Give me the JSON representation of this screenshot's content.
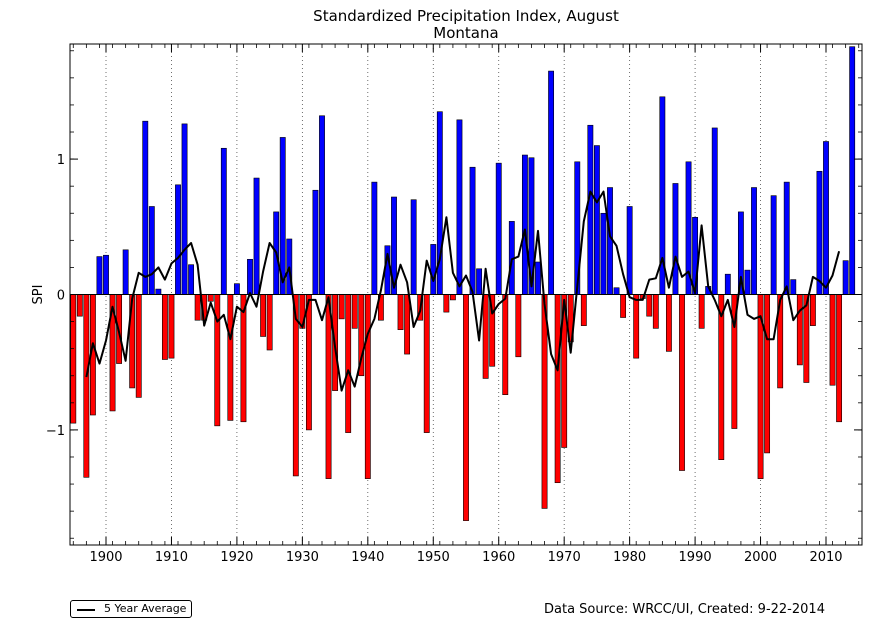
{
  "chart_data": {
    "type": "bar",
    "title": "Standardized Precipitation Index, August",
    "subtitle": "Montana",
    "ylabel": "SPI",
    "xlabel": "",
    "xlim": [
      1894.5,
      2015.5
    ],
    "ylim": [
      -1.85,
      1.85
    ],
    "x_ticks": [
      1900,
      1910,
      1920,
      1930,
      1940,
      1950,
      1960,
      1970,
      1980,
      1990,
      2000,
      2010
    ],
    "y_ticks": [
      -1,
      0,
      1
    ],
    "y_tick_labels": [
      "−1",
      "0",
      "1"
    ],
    "grid": "vertical dotted lines at x ticks",
    "positive_color": "#0000ff",
    "negative_color": "#ff0000",
    "line_color": "#000000",
    "start_year": 1895,
    "values": [
      -0.95,
      -0.16,
      -1.35,
      -0.89,
      0.28,
      0.29,
      -0.86,
      -0.51,
      0.33,
      -0.69,
      -0.76,
      1.28,
      0.65,
      0.04,
      -0.48,
      -0.47,
      0.81,
      1.26,
      0.22,
      -0.19,
      -0.19,
      -0.05,
      -0.97,
      1.08,
      -0.93,
      0.08,
      -0.94,
      0.26,
      0.86,
      -0.31,
      -0.41,
      0.61,
      1.16,
      0.41,
      -1.34,
      -0.25,
      -1.0,
      0.77,
      1.32,
      -1.36,
      -0.71,
      -0.18,
      -1.02,
      -0.25,
      -0.6,
      -1.36,
      0.83,
      -0.19,
      0.36,
      0.72,
      -0.26,
      -0.44,
      0.7,
      -0.19,
      -1.02,
      0.37,
      1.35,
      -0.13,
      -0.04,
      1.29,
      -1.67,
      0.94,
      0.19,
      -0.62,
      -0.53,
      0.97,
      -0.74,
      0.54,
      -0.46,
      1.03,
      1.01,
      0.24,
      -1.58,
      1.65,
      -1.39,
      -1.13,
      -0.35,
      0.98,
      -0.23,
      1.25,
      1.1,
      0.6,
      0.79,
      0.05,
      -0.17,
      0.65,
      -0.47,
      -0.03,
      -0.16,
      -0.25,
      1.46,
      -0.42,
      0.82,
      -1.3,
      0.98,
      0.57,
      -0.25,
      0.06,
      1.23,
      -1.22,
      0.15,
      -0.99,
      0.61,
      0.18,
      0.79,
      -1.36,
      -1.17,
      0.73,
      -0.69,
      0.83,
      0.11,
      -0.52,
      -0.65,
      -0.23,
      0.91,
      1.13,
      -0.67,
      -0.94,
      0.25,
      1.83
    ],
    "series": [
      {
        "name": "5 Year Average",
        "start_year": 1897,
        "values": [
          -0.61,
          -0.36,
          -0.51,
          -0.34,
          -0.09,
          -0.28,
          -0.49,
          -0.03,
          0.16,
          0.13,
          0.15,
          0.2,
          0.11,
          0.23,
          0.27,
          0.33,
          0.38,
          0.22,
          -0.23,
          -0.06,
          -0.2,
          -0.15,
          -0.33,
          -0.09,
          -0.13,
          0.01,
          -0.09,
          0.17,
          0.38,
          0.31,
          0.09,
          0.2,
          -0.18,
          -0.24,
          -0.04,
          -0.04,
          -0.19,
          -0.02,
          -0.39,
          -0.71,
          -0.56,
          -0.68,
          -0.47,
          -0.29,
          -0.18,
          0.03,
          0.3,
          0.05,
          0.22,
          0.09,
          -0.24,
          -0.12,
          0.25,
          0.1,
          0.26,
          0.57,
          0.16,
          0.06,
          0.14,
          0.02,
          -0.34,
          0.19,
          -0.14,
          -0.07,
          -0.03,
          0.26,
          0.28,
          0.48,
          0.06,
          0.47,
          -0.07,
          -0.44,
          -0.56,
          -0.04,
          -0.43,
          0.06,
          0.54,
          0.76,
          0.68,
          0.76,
          0.43,
          0.36,
          0.15,
          -0.02,
          -0.04,
          -0.04,
          0.11,
          0.12,
          0.27,
          0.05,
          0.28,
          0.13,
          0.17,
          0.01,
          0.51,
          0.06,
          -0.04,
          -0.16,
          -0.04,
          -0.24,
          0.13,
          -0.15,
          -0.18,
          -0.16,
          -0.33,
          -0.33,
          -0.04,
          0.06,
          -0.19,
          -0.12,
          -0.08,
          0.13,
          0.1,
          0.05,
          0.14,
          0.32
        ]
      }
    ]
  },
  "legend": {
    "label": "5 Year Average"
  },
  "footer": {
    "source": "Data Source: WRCC/UI, Created: 9-22-2014"
  }
}
